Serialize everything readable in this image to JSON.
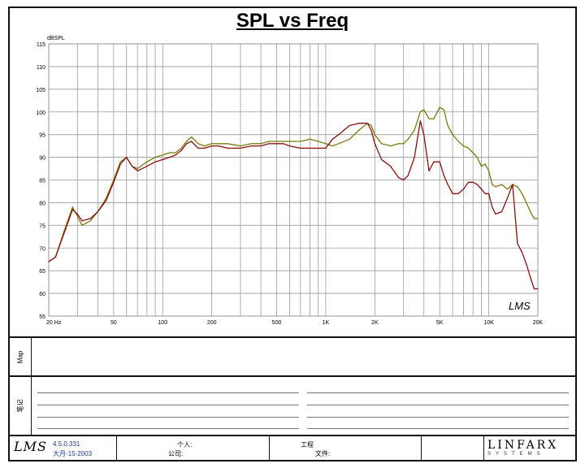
{
  "chart_data": {
    "type": "line",
    "title": "SPL vs Freq",
    "ylabel": "dBSPL",
    "xlabel": "",
    "x_scale": "log",
    "xlim": [
      20,
      20000
    ],
    "ylim": [
      55,
      115
    ],
    "y_ticks": [
      55,
      60,
      65,
      70,
      75,
      80,
      85,
      90,
      95,
      100,
      105,
      110,
      115
    ],
    "x_ticks": [
      {
        "v": 20,
        "label": "20  Hz"
      },
      {
        "v": 50,
        "label": "50"
      },
      {
        "v": 100,
        "label": "100"
      },
      {
        "v": 200,
        "label": "200"
      },
      {
        "v": 500,
        "label": "500"
      },
      {
        "v": 1000,
        "label": "1K"
      },
      {
        "v": 2000,
        "label": "2K"
      },
      {
        "v": 5000,
        "label": "5K"
      },
      {
        "v": 10000,
        "label": "10K"
      },
      {
        "v": 20000,
        "label": "20K"
      }
    ],
    "grid": true,
    "series": [
      {
        "color": "#7a7a10",
        "points": [
          [
            20,
            67
          ],
          [
            22,
            68
          ],
          [
            25,
            74
          ],
          [
            28,
            79
          ],
          [
            30,
            77
          ],
          [
            32,
            75
          ],
          [
            36,
            76
          ],
          [
            40,
            78
          ],
          [
            45,
            81
          ],
          [
            50,
            85
          ],
          [
            55,
            89
          ],
          [
            60,
            90
          ],
          [
            65,
            88
          ],
          [
            70,
            87.5
          ],
          [
            80,
            89
          ],
          [
            90,
            90
          ],
          [
            100,
            90.5
          ],
          [
            110,
            91
          ],
          [
            120,
            91
          ],
          [
            130,
            92
          ],
          [
            140,
            93.5
          ],
          [
            150,
            94.5
          ],
          [
            165,
            93
          ],
          [
            180,
            92.5
          ],
          [
            200,
            93
          ],
          [
            220,
            93
          ],
          [
            250,
            93
          ],
          [
            300,
            92.5
          ],
          [
            350,
            93
          ],
          [
            400,
            93
          ],
          [
            450,
            93.5
          ],
          [
            500,
            93.5
          ],
          [
            550,
            93.5
          ],
          [
            600,
            93.5
          ],
          [
            700,
            93.5
          ],
          [
            800,
            94
          ],
          [
            900,
            93.5
          ],
          [
            1000,
            93
          ],
          [
            1100,
            92.5
          ],
          [
            1200,
            93
          ],
          [
            1400,
            94
          ],
          [
            1600,
            96
          ],
          [
            1800,
            97.5
          ],
          [
            1900,
            97
          ],
          [
            2000,
            95
          ],
          [
            2200,
            93
          ],
          [
            2500,
            92.5
          ],
          [
            2800,
            93
          ],
          [
            3000,
            93
          ],
          [
            3200,
            94
          ],
          [
            3500,
            96
          ],
          [
            3800,
            100
          ],
          [
            4000,
            100.5
          ],
          [
            4300,
            98.5
          ],
          [
            4600,
            98.5
          ],
          [
            5000,
            101
          ],
          [
            5300,
            100.5
          ],
          [
            5600,
            97
          ],
          [
            6000,
            95
          ],
          [
            6500,
            93.5
          ],
          [
            7000,
            92.5
          ],
          [
            7500,
            92
          ],
          [
            8000,
            91
          ],
          [
            8500,
            90
          ],
          [
            9000,
            88
          ],
          [
            9500,
            88.5
          ],
          [
            10000,
            87
          ],
          [
            10500,
            84
          ],
          [
            11000,
            83.5
          ],
          [
            12000,
            84
          ],
          [
            13000,
            83
          ],
          [
            14000,
            84
          ],
          [
            15000,
            83.5
          ],
          [
            16000,
            82
          ],
          [
            17000,
            80
          ],
          [
            18000,
            78
          ],
          [
            19000,
            76.5
          ],
          [
            20000,
            76.5
          ]
        ]
      },
      {
        "color": "#8a1010",
        "points": [
          [
            20,
            67
          ],
          [
            22,
            68
          ],
          [
            25,
            73.5
          ],
          [
            28,
            78.5
          ],
          [
            30,
            77.5
          ],
          [
            32,
            76
          ],
          [
            36,
            76.5
          ],
          [
            40,
            78
          ],
          [
            45,
            80.5
          ],
          [
            50,
            84.5
          ],
          [
            55,
            88.5
          ],
          [
            60,
            90
          ],
          [
            65,
            88
          ],
          [
            70,
            87
          ],
          [
            80,
            88
          ],
          [
            90,
            89
          ],
          [
            100,
            89.5
          ],
          [
            110,
            90
          ],
          [
            120,
            90.5
          ],
          [
            130,
            91.5
          ],
          [
            140,
            93
          ],
          [
            150,
            93.5
          ],
          [
            165,
            92
          ],
          [
            180,
            92
          ],
          [
            200,
            92.5
          ],
          [
            220,
            92.5
          ],
          [
            250,
            92
          ],
          [
            300,
            92
          ],
          [
            350,
            92.5
          ],
          [
            400,
            92.5
          ],
          [
            450,
            93
          ],
          [
            500,
            93
          ],
          [
            550,
            93
          ],
          [
            600,
            92.5
          ],
          [
            700,
            92
          ],
          [
            800,
            92
          ],
          [
            900,
            92
          ],
          [
            1000,
            92
          ],
          [
            1100,
            94
          ],
          [
            1200,
            95
          ],
          [
            1400,
            97
          ],
          [
            1600,
            97.5
          ],
          [
            1800,
            97.5
          ],
          [
            1900,
            96
          ],
          [
            2000,
            93
          ],
          [
            2200,
            89.5
          ],
          [
            2500,
            88
          ],
          [
            2800,
            85.5
          ],
          [
            3000,
            85
          ],
          [
            3200,
            86
          ],
          [
            3500,
            90
          ],
          [
            3800,
            98
          ],
          [
            4000,
            95
          ],
          [
            4300,
            87
          ],
          [
            4600,
            89
          ],
          [
            5000,
            89
          ],
          [
            5300,
            86
          ],
          [
            5600,
            84
          ],
          [
            6000,
            82
          ],
          [
            6500,
            82
          ],
          [
            7000,
            83
          ],
          [
            7500,
            84.5
          ],
          [
            8000,
            84.5
          ],
          [
            8500,
            84
          ],
          [
            9000,
            83
          ],
          [
            9500,
            82
          ],
          [
            10000,
            82
          ],
          [
            10500,
            79
          ],
          [
            11000,
            77.5
          ],
          [
            12000,
            78
          ],
          [
            13000,
            81
          ],
          [
            14000,
            84
          ],
          [
            15000,
            71
          ],
          [
            16000,
            69
          ],
          [
            17000,
            66.5
          ],
          [
            18000,
            63.5
          ],
          [
            19000,
            61
          ],
          [
            20000,
            61
          ]
        ]
      }
    ]
  },
  "panels": {
    "map_label": "Map",
    "notes_label": "笔记"
  },
  "footer": {
    "logo": "LMS",
    "version": "4.5.0.331",
    "date": "大月-15-2003",
    "person_label": "个人:",
    "company_label": "公司:",
    "project_label": "工程",
    "file_label": "文件:",
    "brand": "LINFARX",
    "brand_sub": "SYSTEMS"
  },
  "watermark": "LMS"
}
